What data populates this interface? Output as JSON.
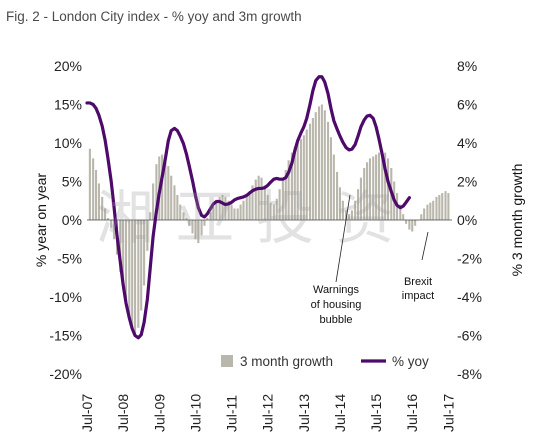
{
  "chart_data": {
    "type": "bar+line",
    "title": "Fig. 2 - London City index - % yoy and 3m growth",
    "ylabel_left": "% year on year",
    "ylabel_right": "% 3 month growth",
    "yticks_left": [
      "20%",
      "15%",
      "10%",
      "5%",
      "0%",
      "-5%",
      "-10%",
      "-15%",
      "-20%"
    ],
    "yticks_right": [
      "8%",
      "6%",
      "4%",
      "2%",
      "0%",
      "-2%",
      "-4%",
      "-6%",
      "-8%"
    ],
    "ylim_left": [
      -20,
      20
    ],
    "ylim_right": [
      -8,
      8
    ],
    "xticks": [
      "Jul-07",
      "Jul-08",
      "Jul-09",
      "Jul-10",
      "Jul-11",
      "Jul-12",
      "Jul-13",
      "Jul-14",
      "Jul-15",
      "Jul-16",
      "Jul-17"
    ],
    "xlim": [
      2007.5,
      2017.6
    ],
    "legend": {
      "bar": "3 month growth",
      "line": "% yoy",
      "position": "bottom"
    },
    "annotations": [
      {
        "lines": [
          "Warnings",
          "of housing",
          "bubble"
        ],
        "x": 2014.3,
        "y": -7.5
      },
      {
        "lines": [
          "Brexit",
          "impact"
        ],
        "x": 2016.6,
        "y": -7
      }
    ],
    "watermark": "湘亚投资",
    "series": [
      {
        "name": "3 month growth",
        "axis": "right",
        "style": "bar",
        "color": "#b9b6ab",
        "points": [
          [
            2007.58,
            3.7
          ],
          [
            2007.67,
            3.2
          ],
          [
            2007.75,
            2.6
          ],
          [
            2007.83,
            1.9
          ],
          [
            2007.92,
            1.2
          ],
          [
            2008.0,
            0.6
          ],
          [
            2008.08,
            0.1
          ],
          [
            2008.17,
            -0.4
          ],
          [
            2008.25,
            -1.0
          ],
          [
            2008.33,
            -1.8
          ],
          [
            2008.42,
            -2.7
          ],
          [
            2008.5,
            -3.6
          ],
          [
            2008.58,
            -4.4
          ],
          [
            2008.67,
            -5.1
          ],
          [
            2008.75,
            -5.6
          ],
          [
            2008.83,
            -5.9
          ],
          [
            2008.92,
            -5.6
          ],
          [
            2009.0,
            -4.7
          ],
          [
            2009.08,
            -3.4
          ],
          [
            2009.17,
            -1.6
          ],
          [
            2009.25,
            0.4
          ],
          [
            2009.33,
            1.9
          ],
          [
            2009.42,
            2.9
          ],
          [
            2009.5,
            3.3
          ],
          [
            2009.58,
            3.4
          ],
          [
            2009.67,
            3.2
          ],
          [
            2009.75,
            2.8
          ],
          [
            2009.83,
            2.3
          ],
          [
            2009.92,
            1.8
          ],
          [
            2010.0,
            1.3
          ],
          [
            2010.08,
            0.8
          ],
          [
            2010.17,
            0.4
          ],
          [
            2010.25,
            0.1
          ],
          [
            2010.33,
            -0.3
          ],
          [
            2010.42,
            -0.7
          ],
          [
            2010.5,
            -1.0
          ],
          [
            2010.58,
            -1.2
          ],
          [
            2010.67,
            -0.8
          ],
          [
            2010.75,
            -0.3
          ],
          [
            2010.83,
            0.1
          ],
          [
            2010.92,
            0.4
          ],
          [
            2011.0,
            0.7
          ],
          [
            2011.08,
            1.0
          ],
          [
            2011.17,
            1.2
          ],
          [
            2011.25,
            1.3
          ],
          [
            2011.33,
            1.2
          ],
          [
            2011.42,
            1.0
          ],
          [
            2011.5,
            0.8
          ],
          [
            2011.58,
            0.6
          ],
          [
            2011.67,
            0.6
          ],
          [
            2011.75,
            0.8
          ],
          [
            2011.83,
            1.0
          ],
          [
            2011.92,
            1.3
          ],
          [
            2012.0,
            1.5
          ],
          [
            2012.08,
            1.8
          ],
          [
            2012.17,
            2.1
          ],
          [
            2012.25,
            2.3
          ],
          [
            2012.33,
            2.2
          ],
          [
            2012.42,
            1.8
          ],
          [
            2012.5,
            1.3
          ],
          [
            2012.58,
            0.9
          ],
          [
            2012.67,
            0.8
          ],
          [
            2012.75,
            1.1
          ],
          [
            2012.83,
            1.6
          ],
          [
            2012.92,
            2.1
          ],
          [
            2013.0,
            2.6
          ],
          [
            2013.08,
            3.1
          ],
          [
            2013.17,
            3.5
          ],
          [
            2013.25,
            3.8
          ],
          [
            2013.33,
            4.0
          ],
          [
            2013.42,
            4.2
          ],
          [
            2013.5,
            4.4
          ],
          [
            2013.58,
            4.7
          ],
          [
            2013.67,
            5.0
          ],
          [
            2013.75,
            5.3
          ],
          [
            2013.83,
            5.6
          ],
          [
            2013.92,
            5.9
          ],
          [
            2014.0,
            6.0
          ],
          [
            2014.08,
            5.7
          ],
          [
            2014.17,
            5.1
          ],
          [
            2014.25,
            4.3
          ],
          [
            2014.33,
            3.4
          ],
          [
            2014.42,
            2.5
          ],
          [
            2014.5,
            1.7
          ],
          [
            2014.58,
            1.0
          ],
          [
            2014.67,
            0.5
          ],
          [
            2014.75,
            0.3
          ],
          [
            2014.83,
            0.5
          ],
          [
            2014.92,
            1.0
          ],
          [
            2015.0,
            1.6
          ],
          [
            2015.08,
            2.2
          ],
          [
            2015.17,
            2.7
          ],
          [
            2015.25,
            3.0
          ],
          [
            2015.33,
            3.2
          ],
          [
            2015.42,
            3.3
          ],
          [
            2015.5,
            3.4
          ],
          [
            2015.58,
            3.5
          ],
          [
            2015.67,
            3.6
          ],
          [
            2015.75,
            3.5
          ],
          [
            2015.83,
            3.2
          ],
          [
            2015.92,
            2.7
          ],
          [
            2016.0,
            2.0
          ],
          [
            2016.08,
            1.4
          ],
          [
            2016.17,
            0.8
          ],
          [
            2016.25,
            0.3
          ],
          [
            2016.33,
            -0.2
          ],
          [
            2016.42,
            -0.5
          ],
          [
            2016.5,
            -0.6
          ],
          [
            2016.58,
            -0.3
          ],
          [
            2016.67,
            0.0
          ],
          [
            2016.75,
            0.3
          ],
          [
            2016.83,
            0.6
          ],
          [
            2016.92,
            0.8
          ],
          [
            2017.0,
            0.9
          ],
          [
            2017.08,
            1.0
          ],
          [
            2017.17,
            1.2
          ],
          [
            2017.25,
            1.3
          ],
          [
            2017.33,
            1.4
          ],
          [
            2017.42,
            1.5
          ],
          [
            2017.5,
            1.4
          ]
        ]
      },
      {
        "name": "% yoy",
        "axis": "left",
        "style": "line",
        "color": "#4e0a6b",
        "points": [
          [
            2007.5,
            15.2
          ],
          [
            2007.58,
            15.2
          ],
          [
            2007.67,
            15.0
          ],
          [
            2007.75,
            14.5
          ],
          [
            2007.83,
            13.6
          ],
          [
            2007.92,
            12.2
          ],
          [
            2008.0,
            10.4
          ],
          [
            2008.08,
            8.0
          ],
          [
            2008.17,
            5.0
          ],
          [
            2008.25,
            1.6
          ],
          [
            2008.33,
            -2.0
          ],
          [
            2008.42,
            -5.4
          ],
          [
            2008.5,
            -8.4
          ],
          [
            2008.58,
            -10.8
          ],
          [
            2008.67,
            -12.7
          ],
          [
            2008.75,
            -14.1
          ],
          [
            2008.83,
            -15.0
          ],
          [
            2008.92,
            -15.3
          ],
          [
            2009.0,
            -14.9
          ],
          [
            2009.08,
            -13.3
          ],
          [
            2009.17,
            -10.3
          ],
          [
            2009.25,
            -6.2
          ],
          [
            2009.33,
            -2.1
          ],
          [
            2009.42,
            1.1
          ],
          [
            2009.5,
            3.5
          ],
          [
            2009.58,
            5.6
          ],
          [
            2009.67,
            8.0
          ],
          [
            2009.75,
            10.3
          ],
          [
            2009.83,
            11.6
          ],
          [
            2009.92,
            11.9
          ],
          [
            2010.0,
            11.6
          ],
          [
            2010.08,
            10.9
          ],
          [
            2010.17,
            9.9
          ],
          [
            2010.25,
            8.6
          ],
          [
            2010.33,
            7.0
          ],
          [
            2010.42,
            5.1
          ],
          [
            2010.5,
            3.2
          ],
          [
            2010.58,
            1.6
          ],
          [
            2010.67,
            0.6
          ],
          [
            2010.75,
            0.4
          ],
          [
            2010.83,
            0.8
          ],
          [
            2010.92,
            1.5
          ],
          [
            2011.0,
            2.1
          ],
          [
            2011.08,
            2.4
          ],
          [
            2011.17,
            2.4
          ],
          [
            2011.25,
            2.2
          ],
          [
            2011.33,
            2.0
          ],
          [
            2011.42,
            2.1
          ],
          [
            2011.5,
            2.3
          ],
          [
            2011.58,
            2.6
          ],
          [
            2011.67,
            2.8
          ],
          [
            2011.75,
            2.9
          ],
          [
            2011.83,
            3.0
          ],
          [
            2011.92,
            3.2
          ],
          [
            2012.0,
            3.5
          ],
          [
            2012.08,
            3.8
          ],
          [
            2012.17,
            4.0
          ],
          [
            2012.25,
            4.1
          ],
          [
            2012.33,
            4.1
          ],
          [
            2012.42,
            4.2
          ],
          [
            2012.5,
            4.5
          ],
          [
            2012.58,
            4.9
          ],
          [
            2012.67,
            5.3
          ],
          [
            2012.75,
            5.4
          ],
          [
            2012.83,
            5.3
          ],
          [
            2012.92,
            5.3
          ],
          [
            2013.0,
            5.5
          ],
          [
            2013.08,
            6.2
          ],
          [
            2013.17,
            7.4
          ],
          [
            2013.25,
            9.0
          ],
          [
            2013.33,
            10.3
          ],
          [
            2013.42,
            11.3
          ],
          [
            2013.5,
            12.1
          ],
          [
            2013.58,
            13.2
          ],
          [
            2013.67,
            15.0
          ],
          [
            2013.75,
            16.8
          ],
          [
            2013.83,
            18.1
          ],
          [
            2013.92,
            18.6
          ],
          [
            2014.0,
            18.6
          ],
          [
            2014.08,
            17.9
          ],
          [
            2014.17,
            16.4
          ],
          [
            2014.25,
            14.5
          ],
          [
            2014.33,
            12.9
          ],
          [
            2014.42,
            11.8
          ],
          [
            2014.5,
            10.9
          ],
          [
            2014.58,
            10.1
          ],
          [
            2014.67,
            9.4
          ],
          [
            2014.75,
            9.1
          ],
          [
            2014.83,
            9.2
          ],
          [
            2014.92,
            9.8
          ],
          [
            2015.0,
            10.9
          ],
          [
            2015.08,
            12.1
          ],
          [
            2015.17,
            13.0
          ],
          [
            2015.25,
            13.5
          ],
          [
            2015.33,
            13.6
          ],
          [
            2015.42,
            13.2
          ],
          [
            2015.5,
            12.1
          ],
          [
            2015.58,
            10.5
          ],
          [
            2015.67,
            8.5
          ],
          [
            2015.75,
            6.6
          ],
          [
            2015.83,
            5.0
          ],
          [
            2015.92,
            3.7
          ],
          [
            2016.0,
            2.6
          ],
          [
            2016.08,
            1.9
          ],
          [
            2016.17,
            1.6
          ],
          [
            2016.25,
            1.8
          ],
          [
            2016.33,
            2.3
          ],
          [
            2016.42,
            2.9
          ]
        ]
      }
    ]
  }
}
